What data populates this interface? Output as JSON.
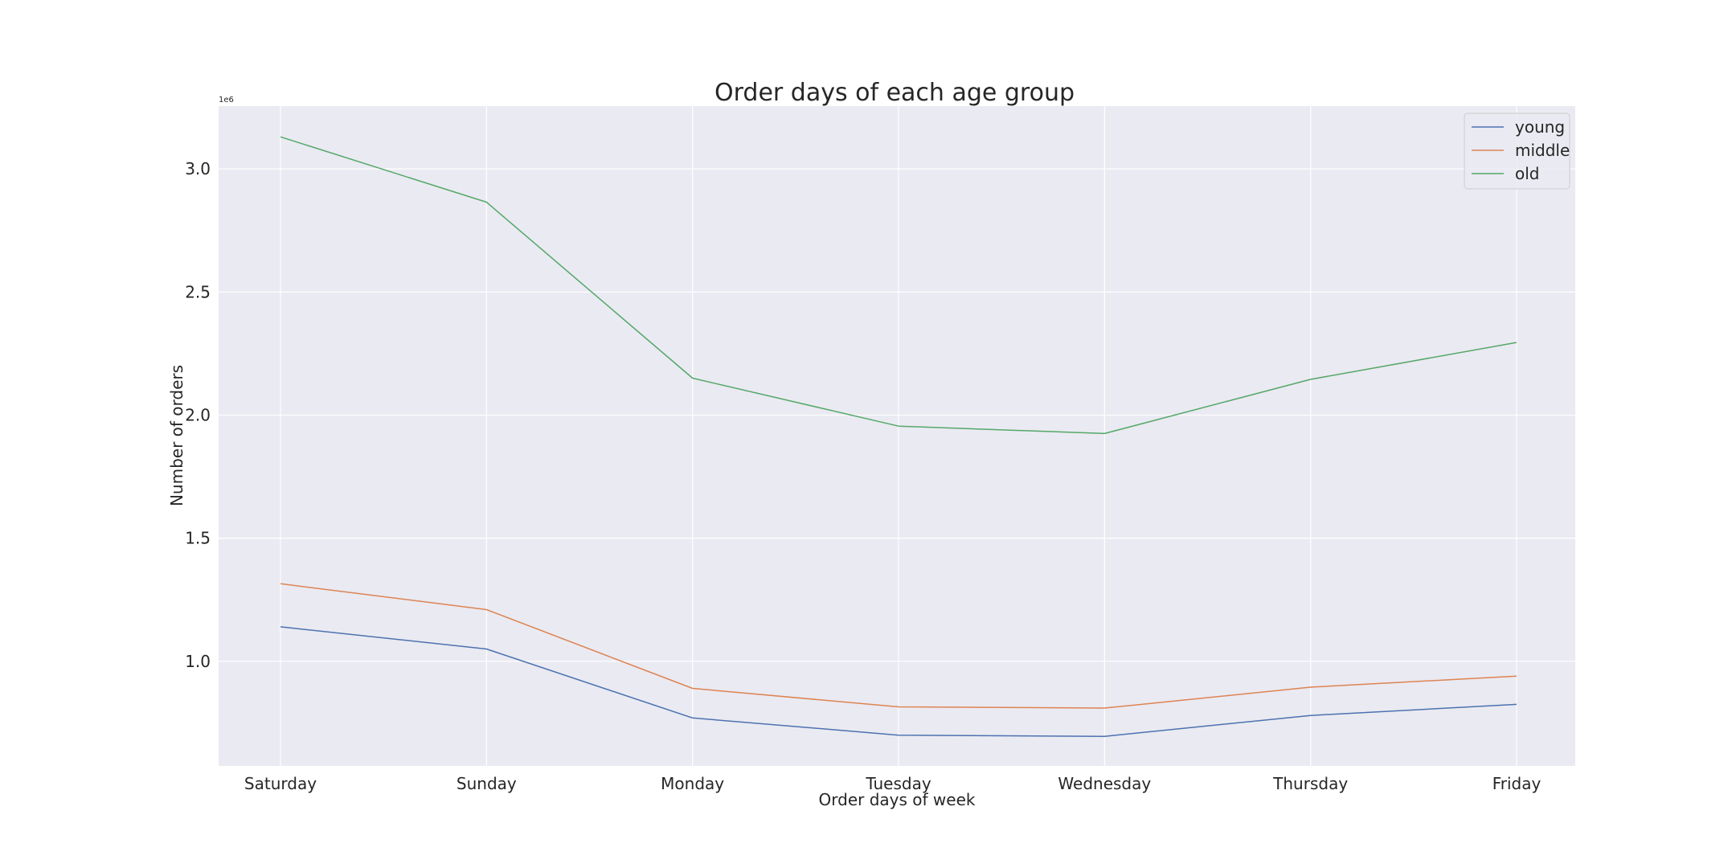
{
  "chart_data": {
    "type": "line",
    "title": "Order days of each age group",
    "xlabel": "Order days of week",
    "ylabel": "Number of orders",
    "y_offset_label": "1e6",
    "categories": [
      "Saturday",
      "Sunday",
      "Monday",
      "Tuesday",
      "Wednesday",
      "Thursday",
      "Friday"
    ],
    "ylim": [
      0.575,
      3.255
    ],
    "yticks": [
      1.0,
      1.5,
      2.0,
      2.5,
      3.0
    ],
    "ytick_labels": [
      "1.0",
      "1.5",
      "2.0",
      "2.5",
      "3.0"
    ],
    "series": [
      {
        "name": "young",
        "color": "#4c72b0",
        "values": [
          1.14,
          1.05,
          0.77,
          0.7,
          0.695,
          0.78,
          0.825
        ]
      },
      {
        "name": "middle",
        "color": "#dd8452",
        "values": [
          1.315,
          1.21,
          0.89,
          0.815,
          0.81,
          0.895,
          0.94
        ]
      },
      {
        "name": "old",
        "color": "#55a868",
        "values": [
          3.13,
          2.865,
          2.15,
          1.955,
          1.925,
          2.145,
          2.295
        ]
      }
    ],
    "grid": true,
    "legend_position": "top-right",
    "background_color": "#eaeaf2",
    "grid_color": "#ffffff"
  }
}
